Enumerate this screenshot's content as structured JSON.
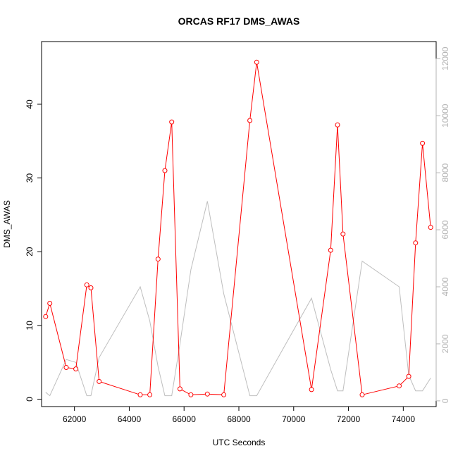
{
  "chart_data": {
    "type": "line",
    "title": "ORCAS RF17 DMS_AWAS",
    "xlabel": "UTC Seconds",
    "ylabel": "DMS_AWAS",
    "xlim": [
      60800,
      75200
    ],
    "ylim": [
      -1,
      48.5
    ],
    "y2lim": [
      -200,
      12600
    ],
    "x_ticks": [
      62000,
      64000,
      66000,
      68000,
      70000,
      72000,
      74000
    ],
    "x_tick_labels": [
      "62000",
      "64000",
      "66000",
      "68000",
      "70000",
      "72000",
      "74000"
    ],
    "y_ticks": [
      0,
      10,
      20,
      30,
      40
    ],
    "y_tick_labels": [
      "0",
      "10",
      "20",
      "30",
      "40"
    ],
    "y2_ticks": [
      0,
      2000,
      4000,
      6000,
      8000,
      10000,
      12000
    ],
    "y2_tick_labels": [
      "0",
      "2000",
      "4000",
      "6000",
      "8000",
      "10000",
      "12000"
    ],
    "grid": false,
    "series": [
      {
        "axis": "left",
        "color": "#ff0000",
        "marker": "open-circle",
        "x": [
          60950,
          61100,
          61700,
          62050,
          62450,
          62600,
          62900,
          64400,
          64750,
          65050,
          65300,
          65550,
          65850,
          66250,
          66850,
          67450,
          68400,
          68650,
          70650,
          71350,
          71600,
          71800,
          72500,
          73850,
          74200,
          74450,
          74700,
          75000
        ],
        "y": [
          11.2,
          13.0,
          4.3,
          4.1,
          15.5,
          15.1,
          2.4,
          0.6,
          0.6,
          19.0,
          31.0,
          37.6,
          1.4,
          0.6,
          0.7,
          0.6,
          37.8,
          45.7,
          1.3,
          20.2,
          37.2,
          22.4,
          0.6,
          1.8,
          3.1,
          21.2,
          34.7,
          23.3
        ]
      },
      {
        "axis": "right",
        "color": "#bebebe",
        "marker": "none",
        "x": [
          60950,
          61100,
          61700,
          62050,
          62450,
          62600,
          62900,
          64400,
          64750,
          65050,
          65300,
          65550,
          65850,
          66250,
          66850,
          67450,
          68400,
          68650,
          70650,
          71350,
          71600,
          71800,
          72500,
          73850,
          74200,
          74450,
          74700,
          75000
        ],
        "y": [
          300,
          180,
          1450,
          1350,
          180,
          180,
          1520,
          4000,
          2800,
          1200,
          180,
          180,
          2000,
          4600,
          7000,
          3750,
          180,
          180,
          3600,
          1100,
          350,
          350,
          4900,
          4000,
          900,
          350,
          350,
          800
        ]
      }
    ]
  }
}
